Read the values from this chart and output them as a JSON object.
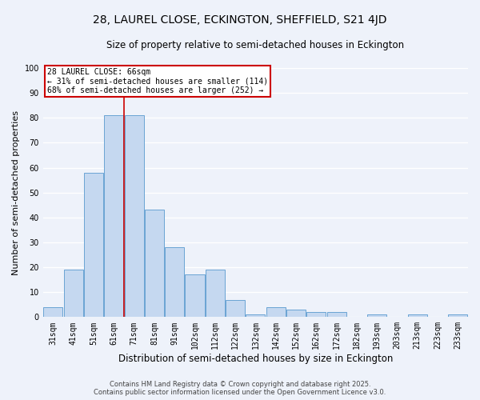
{
  "title": "28, LAUREL CLOSE, ECKINGTON, SHEFFIELD, S21 4JD",
  "subtitle": "Size of property relative to semi-detached houses in Eckington",
  "xlabel": "Distribution of semi-detached houses by size in Eckington",
  "ylabel": "Number of semi-detached properties",
  "categories": [
    "31sqm",
    "41sqm",
    "51sqm",
    "61sqm",
    "71sqm",
    "81sqm",
    "91sqm",
    "102sqm",
    "112sqm",
    "122sqm",
    "132sqm",
    "142sqm",
    "152sqm",
    "162sqm",
    "172sqm",
    "182sqm",
    "193sqm",
    "203sqm",
    "213sqm",
    "223sqm",
    "233sqm"
  ],
  "values": [
    4,
    19,
    58,
    81,
    81,
    43,
    28,
    17,
    19,
    7,
    1,
    4,
    3,
    2,
    2,
    0,
    1,
    0,
    1,
    0,
    1
  ],
  "bar_color": "#c5d8f0",
  "bar_edge_color": "#6aa3d4",
  "bg_color": "#eef2fa",
  "grid_color": "#ffffff",
  "annotation_text_line1": "28 LAUREL CLOSE: 66sqm",
  "annotation_text_line2": "← 31% of semi-detached houses are smaller (114)",
  "annotation_text_line3": "68% of semi-detached houses are larger (252) →",
  "vline_color": "#cc0000",
  "annotation_box_edge_color": "#cc0000",
  "ylim": [
    0,
    100
  ],
  "yticks": [
    0,
    10,
    20,
    30,
    40,
    50,
    60,
    70,
    80,
    90,
    100
  ],
  "footer_line1": "Contains HM Land Registry data © Crown copyright and database right 2025.",
  "footer_line2": "Contains public sector information licensed under the Open Government Licence v3.0.",
  "title_fontsize": 10,
  "subtitle_fontsize": 8.5,
  "xlabel_fontsize": 8.5,
  "ylabel_fontsize": 8,
  "tick_fontsize": 7,
  "footer_fontsize": 6,
  "annotation_fontsize": 7,
  "vline_x": 3.5
}
